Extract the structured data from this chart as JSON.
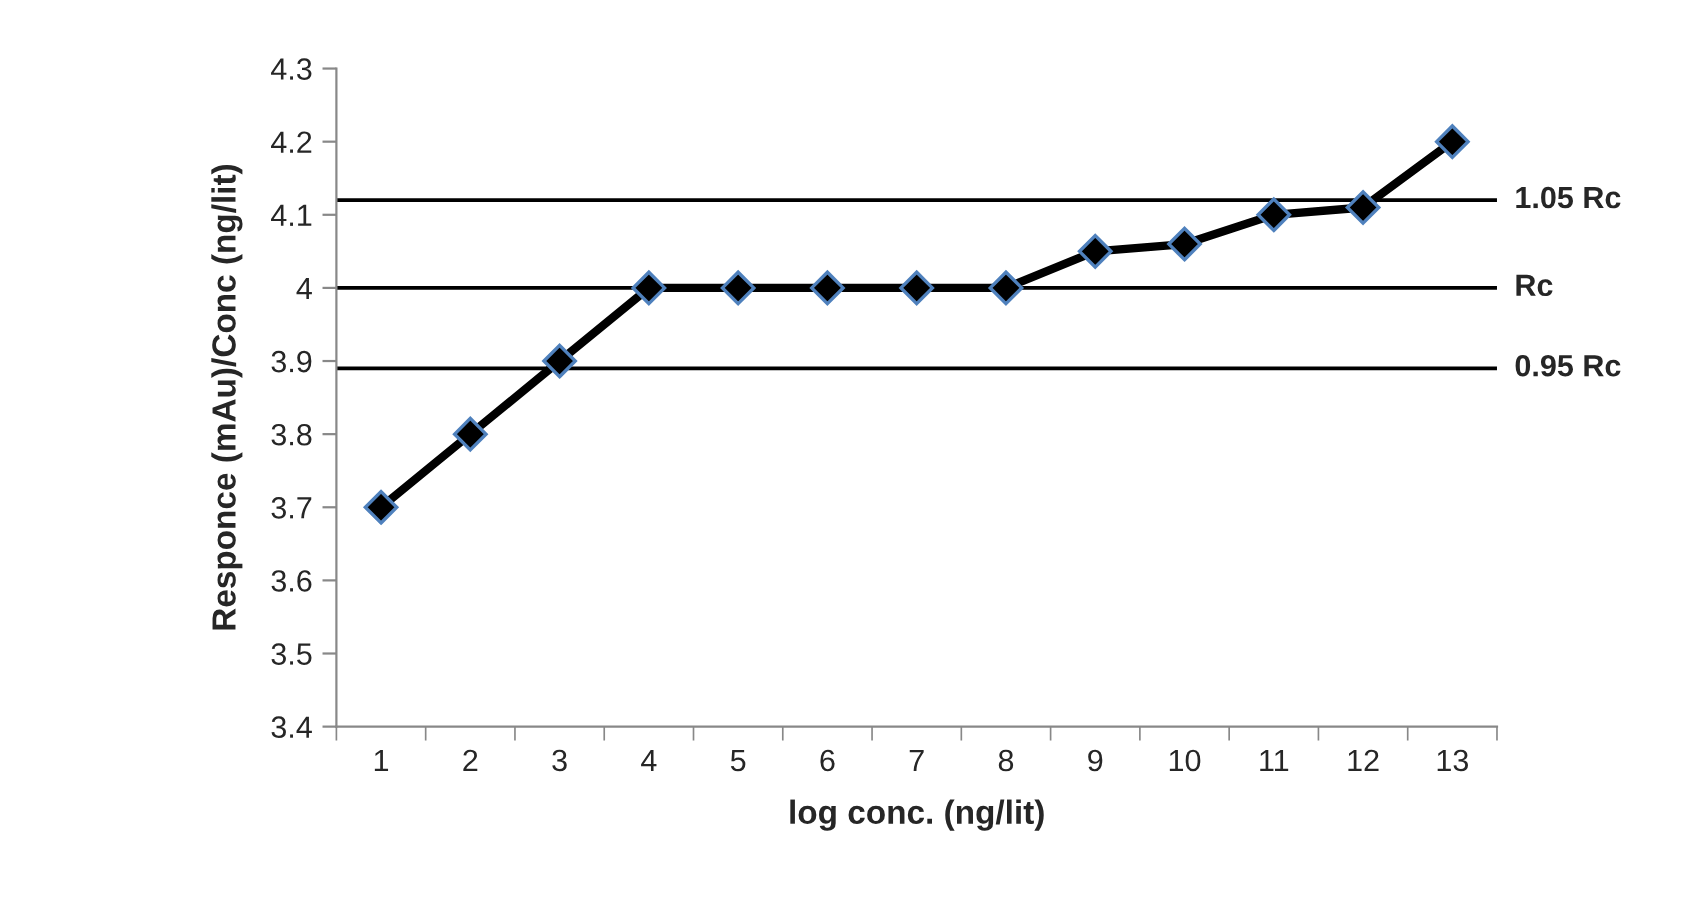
{
  "chart_data": {
    "type": "line",
    "xlabel": "log conc. (ng/lit)",
    "ylabel": "Responce (mAu)/Conc (ng/lit)",
    "categories": [
      "1",
      "2",
      "3",
      "4",
      "5",
      "6",
      "7",
      "8",
      "9",
      "10",
      "11",
      "12",
      "13"
    ],
    "series": [
      {
        "color": "#000000",
        "values": [
          3.7,
          3.8,
          3.9,
          4.0,
          4.0,
          4.0,
          4.0,
          4.0,
          4.05,
          4.06,
          4.1,
          4.11,
          4.2
        ]
      }
    ],
    "marker": "diamond",
    "line_style": "solid",
    "ylim": [
      3.4,
      4.3
    ],
    "yticks": [
      3.4,
      3.5,
      3.6,
      3.7,
      3.8,
      3.9,
      4,
      4.1,
      4.2,
      4.3
    ],
    "grid": false,
    "legend": false,
    "ref_lines": [
      {
        "axis": "y",
        "value": 4.12,
        "label": "1.05 Rc",
        "color": "#000000"
      },
      {
        "axis": "y",
        "value": 4.0,
        "label": "Rc",
        "color": "#000000"
      },
      {
        "axis": "y",
        "value": 3.89,
        "label": "0.95 Rc",
        "color": "#000000"
      }
    ]
  }
}
